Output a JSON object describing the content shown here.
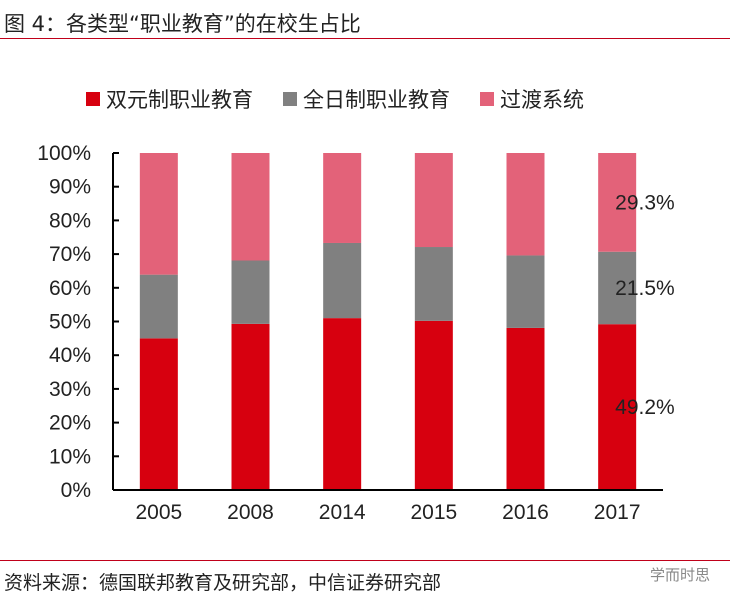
{
  "title": "图 4：各类型“职业教育”的在校生占比",
  "source": "资料来源：德国联邦教育及研究部，中信证券研究部",
  "watermark": "学而时思",
  "chart_data": {
    "type": "bar",
    "stacked": true,
    "categories": [
      "2005",
      "2008",
      "2014",
      "2015",
      "2016",
      "2017"
    ],
    "series": [
      {
        "name": "双元制职业教育",
        "color": "#d7000f",
        "values": [
          45.0,
          49.3,
          51.0,
          50.2,
          48.1,
          49.2
        ]
      },
      {
        "name": "全日制职业教育",
        "color": "#808080",
        "values": [
          18.9,
          18.8,
          22.3,
          21.9,
          21.5,
          21.5
        ]
      },
      {
        "name": "过渡系统",
        "color": "#e36279",
        "values": [
          36.1,
          31.9,
          26.7,
          27.9,
          30.4,
          29.3
        ]
      }
    ],
    "ylim": [
      0,
      100
    ],
    "yticks": [
      "0%",
      "10%",
      "20%",
      "30%",
      "40%",
      "50%",
      "60%",
      "70%",
      "80%",
      "90%",
      "100%"
    ],
    "data_labels": [
      "49.2%",
      "21.5%",
      "29.3%"
    ],
    "legend": "top",
    "grid": false
  }
}
